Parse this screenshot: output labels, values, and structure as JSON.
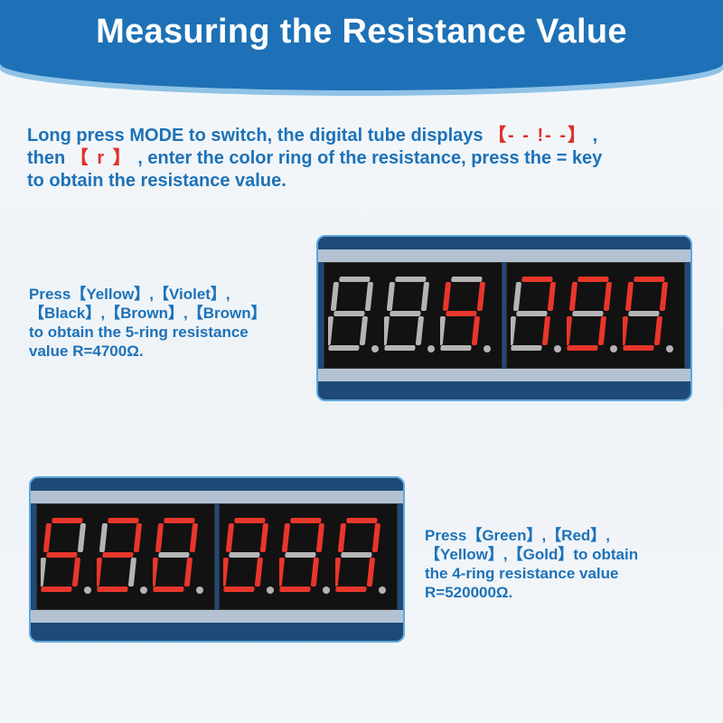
{
  "header": {
    "title": "Measuring the Resistance Value"
  },
  "intro": {
    "line1_prefix": "Long press MODE to switch, the digital tube displays ",
    "display_code_1": "【- -  !- -】",
    "line1_suffix": " ,",
    "line2_prefix": "then ",
    "display_code_2": "【 r 】",
    "line2_suffix": " , enter the color ring of the resistance, press the  = key",
    "line3": "to obtain the resistance value."
  },
  "example1": {
    "caption": [
      "Press【Yellow】,【Violet】,",
      "【Black】,【Brown】,【Brown】",
      "to obtain the 5-ring resistance",
      "value R=4700Ω."
    ],
    "display": "  4700"
  },
  "example2": {
    "caption": [
      "Press【Green】,【Red】,",
      "【Yellow】,【Gold】to obtain",
      "the 4-ring resistance value",
      "R=520000Ω."
    ],
    "display": "520000"
  },
  "colors": {
    "lit": "#e8362b",
    "unlit": "#b4b4b4",
    "brand": "#1e71b6"
  }
}
